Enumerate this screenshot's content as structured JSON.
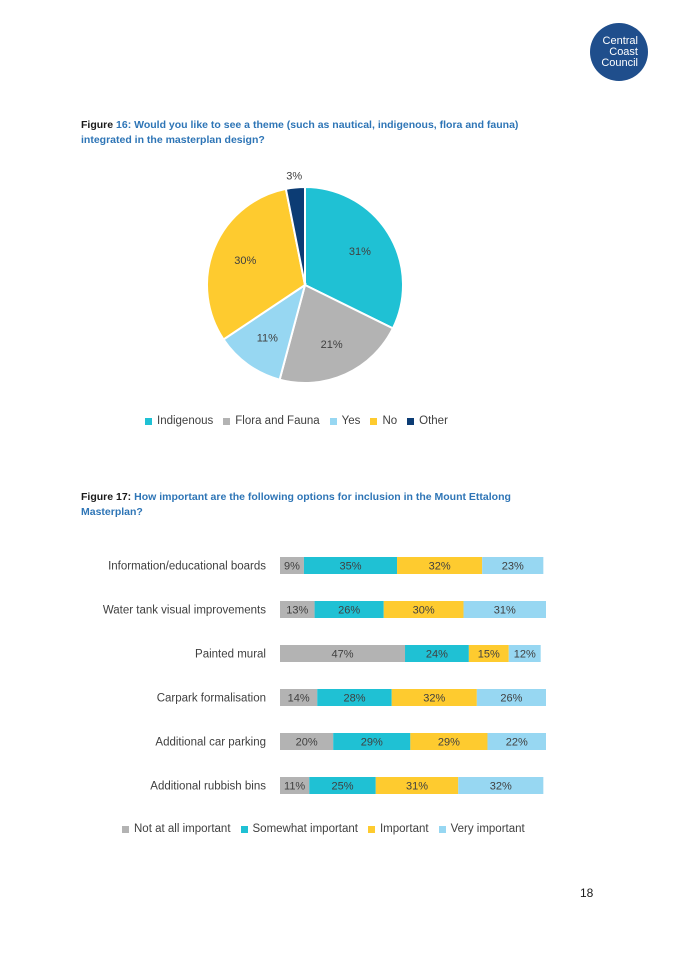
{
  "logo": {
    "lines": [
      "Central",
      "Coast",
      "Council"
    ]
  },
  "figure16": {
    "label": "Figure",
    "title": "16: Would you like to see a theme (such as nautical, indigenous, flora and fauna) integrated in the masterplan design?"
  },
  "figure17": {
    "label": "Figure 17:",
    "title": "How important are the following options for inclusion in the Mount Ettalong Masterplan?"
  },
  "page_number": "18",
  "colors": {
    "indigenous": "#1fc1d4",
    "flora": "#b3b3b3",
    "yes": "#97d7f2",
    "no": "#fecb2f",
    "other": "#0c3c74",
    "not_at_all": "#b3b3b3",
    "somewhat": "#1fc1d4",
    "important": "#fecb2f",
    "very": "#97d7f2"
  },
  "chart_data": [
    {
      "type": "pie",
      "title": "",
      "labels": [
        "Indigenous",
        "Flora and Fauna",
        "Yes",
        "No",
        "Other"
      ],
      "values": [
        31,
        21,
        11,
        30,
        3
      ],
      "value_labels": [
        "31%",
        "21%",
        "11%",
        "30%",
        "3%"
      ],
      "legend_position": "bottom"
    },
    {
      "type": "bar",
      "orientation": "horizontal",
      "stacked": "100%",
      "categories": [
        "Information/educational boards",
        "Water tank visual improvements",
        "Painted mural",
        "Carpark formalisation",
        "Additional car parking",
        "Additional rubbish bins"
      ],
      "series": [
        {
          "name": "Not at all important",
          "values": [
            9,
            13,
            47,
            14,
            20,
            11
          ],
          "labels": [
            "9%",
            "13%",
            "47%",
            "14%",
            "20%",
            "11%"
          ]
        },
        {
          "name": "Somewhat important",
          "values": [
            35,
            26,
            24,
            28,
            29,
            25
          ],
          "labels": [
            "35%",
            "26%",
            "24%",
            "28%",
            "29%",
            "25%"
          ]
        },
        {
          "name": "Important",
          "values": [
            32,
            30,
            15,
            32,
            29,
            31
          ],
          "labels": [
            "32%",
            "30%",
            "15%",
            "32%",
            "29%",
            "31%"
          ]
        },
        {
          "name": "Very important",
          "values": [
            23,
            31,
            12,
            26,
            22,
            32
          ],
          "labels": [
            "23%",
            "31%",
            "12%",
            "26%",
            "22%",
            "32%"
          ]
        }
      ],
      "legend_position": "bottom"
    }
  ]
}
